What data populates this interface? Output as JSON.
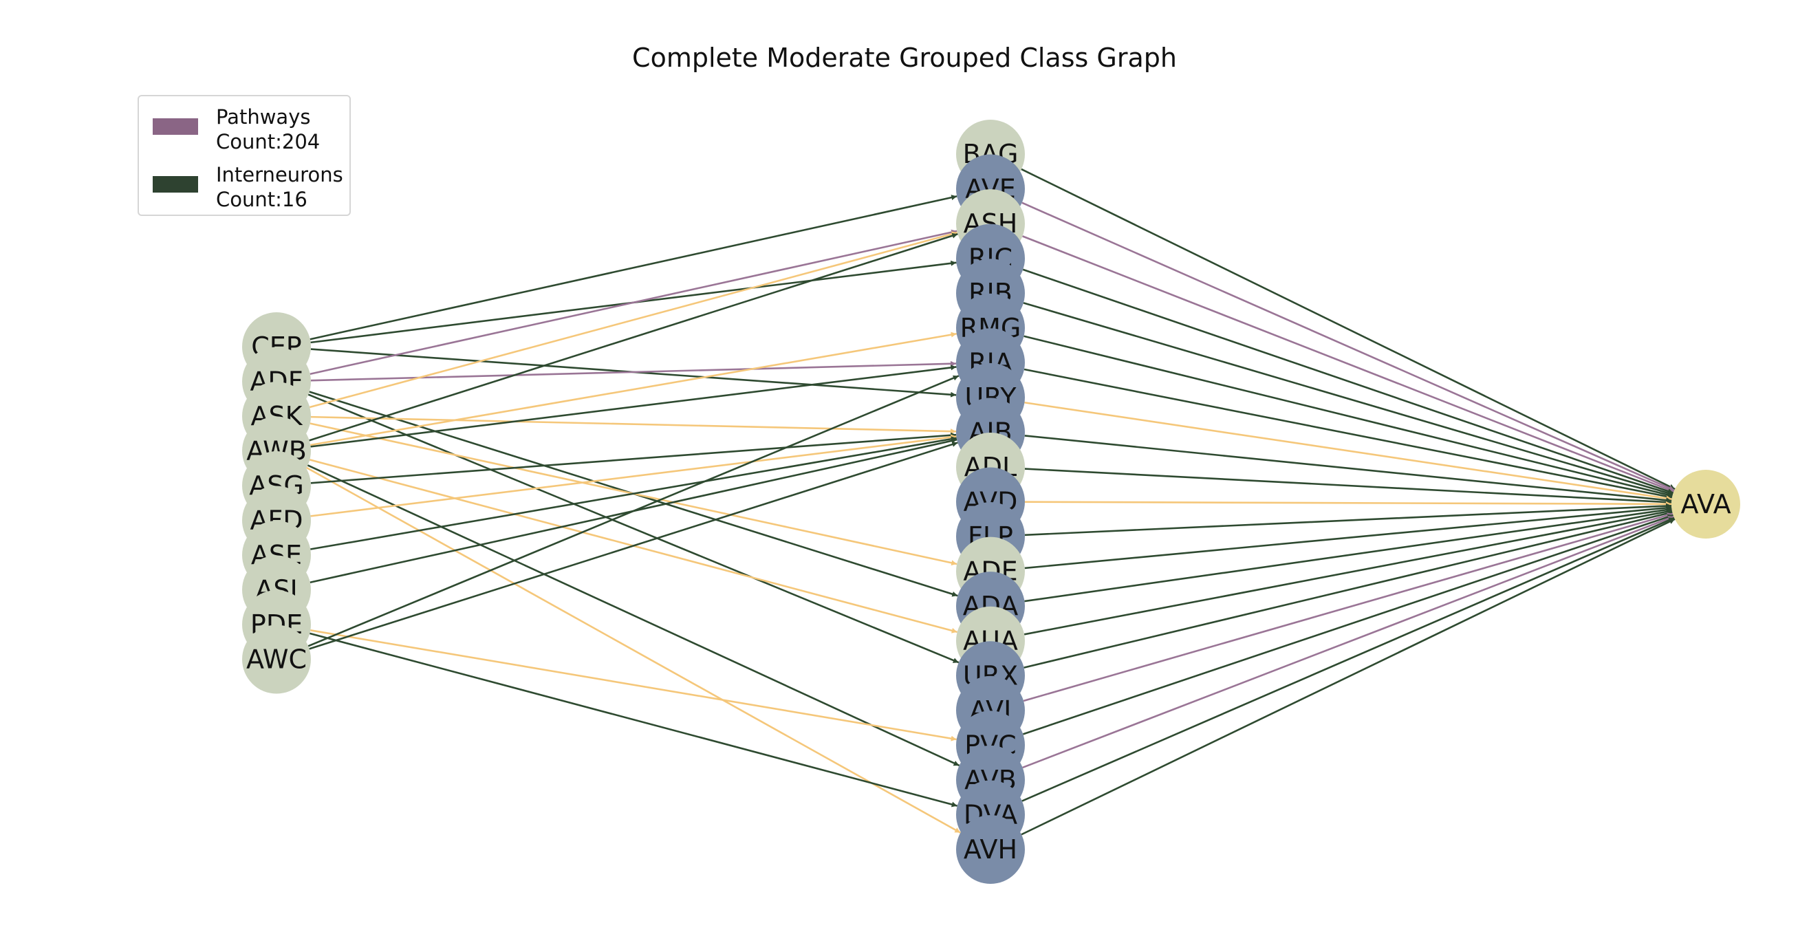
{
  "title": "Complete Moderate Grouped Class Graph",
  "legend": [
    {
      "label": "Pathways",
      "count": "Count:204",
      "color": "#8a6585"
    },
    {
      "label": "Interneurons",
      "count": "Count:16",
      "color": "#2e4230"
    }
  ],
  "colors": {
    "sensory_node": "#cbd3be",
    "interneuron_node": "#7a8ca8",
    "target_node": "#e6dc9c",
    "edge_dark": "#2e4a30",
    "edge_purple": "#9a7596",
    "edge_orange": "#f5c77a"
  },
  "nodes": {
    "left": [
      "CEP",
      "ADF",
      "ASK",
      "AWB",
      "ASG",
      "AFD",
      "ASE",
      "ASI",
      "PDE",
      "AWC"
    ],
    "middle": [
      {
        "id": "BAG",
        "kind": "sensory"
      },
      {
        "id": "AVE",
        "kind": "inter"
      },
      {
        "id": "ASH",
        "kind": "sensory"
      },
      {
        "id": "RIC",
        "kind": "inter"
      },
      {
        "id": "RIB",
        "kind": "inter"
      },
      {
        "id": "RMG",
        "kind": "inter"
      },
      {
        "id": "RIA",
        "kind": "inter"
      },
      {
        "id": "URY",
        "kind": "inter"
      },
      {
        "id": "AIB",
        "kind": "inter"
      },
      {
        "id": "ADL",
        "kind": "sensory"
      },
      {
        "id": "AVD",
        "kind": "inter"
      },
      {
        "id": "FLP",
        "kind": "inter"
      },
      {
        "id": "ADE",
        "kind": "sensory"
      },
      {
        "id": "ADA",
        "kind": "inter"
      },
      {
        "id": "AUA",
        "kind": "sensory"
      },
      {
        "id": "URX",
        "kind": "inter"
      },
      {
        "id": "AVJ",
        "kind": "inter"
      },
      {
        "id": "PVC",
        "kind": "inter"
      },
      {
        "id": "AVB",
        "kind": "inter"
      },
      {
        "id": "DVA",
        "kind": "inter"
      },
      {
        "id": "AVH",
        "kind": "inter"
      }
    ],
    "target": "AVA"
  },
  "edges_left": [
    {
      "from": "CEP",
      "to": "AVE",
      "color": "edge_dark"
    },
    {
      "from": "CEP",
      "to": "RIC",
      "color": "edge_dark"
    },
    {
      "from": "CEP",
      "to": "URY",
      "color": "edge_dark"
    },
    {
      "from": "ADF",
      "to": "ASH",
      "color": "edge_purple"
    },
    {
      "from": "ADF",
      "to": "RIA",
      "color": "edge_purple"
    },
    {
      "from": "ADF",
      "to": "ADA",
      "color": "edge_dark"
    },
    {
      "from": "ADF",
      "to": "URX",
      "color": "edge_dark"
    },
    {
      "from": "ASK",
      "to": "ASH",
      "color": "edge_orange"
    },
    {
      "from": "ASK",
      "to": "AIB",
      "color": "edge_orange"
    },
    {
      "from": "ASK",
      "to": "ADE",
      "color": "edge_orange"
    },
    {
      "from": "AWB",
      "to": "ASH",
      "color": "edge_dark"
    },
    {
      "from": "AWB",
      "to": "RMG",
      "color": "edge_orange"
    },
    {
      "from": "AWB",
      "to": "RIA",
      "color": "edge_dark"
    },
    {
      "from": "AWB",
      "to": "AUA",
      "color": "edge_orange"
    },
    {
      "from": "AWB",
      "to": "AVB",
      "color": "edge_dark"
    },
    {
      "from": "AWB",
      "to": "AVH",
      "color": "edge_orange"
    },
    {
      "from": "ASG",
      "to": "AIB",
      "color": "edge_dark"
    },
    {
      "from": "AFD",
      "to": "AIB",
      "color": "edge_orange"
    },
    {
      "from": "ASE",
      "to": "AIB",
      "color": "edge_dark"
    },
    {
      "from": "ASI",
      "to": "AIB",
      "color": "edge_dark"
    },
    {
      "from": "PDE",
      "to": "PVC",
      "color": "edge_orange"
    },
    {
      "from": "PDE",
      "to": "DVA",
      "color": "edge_dark"
    },
    {
      "from": "AWC",
      "to": "RIA",
      "color": "edge_dark"
    },
    {
      "from": "AWC",
      "to": "AIB",
      "color": "edge_dark"
    }
  ],
  "edges_right": [
    {
      "from": "BAG",
      "color": "edge_dark"
    },
    {
      "from": "AVE",
      "color": "edge_purple"
    },
    {
      "from": "ASH",
      "color": "edge_purple"
    },
    {
      "from": "RIC",
      "color": "edge_dark"
    },
    {
      "from": "RIB",
      "color": "edge_dark"
    },
    {
      "from": "RMG",
      "color": "edge_dark"
    },
    {
      "from": "RIA",
      "color": "edge_dark"
    },
    {
      "from": "URY",
      "color": "edge_orange"
    },
    {
      "from": "AIB",
      "color": "edge_dark"
    },
    {
      "from": "ADL",
      "color": "edge_dark"
    },
    {
      "from": "AVD",
      "color": "edge_orange"
    },
    {
      "from": "FLP",
      "color": "edge_dark"
    },
    {
      "from": "ADE",
      "color": "edge_dark"
    },
    {
      "from": "ADA",
      "color": "edge_dark"
    },
    {
      "from": "AUA",
      "color": "edge_dark"
    },
    {
      "from": "URX",
      "color": "edge_dark"
    },
    {
      "from": "AVJ",
      "color": "edge_purple"
    },
    {
      "from": "PVC",
      "color": "edge_dark"
    },
    {
      "from": "AVB",
      "color": "edge_purple"
    },
    {
      "from": "DVA",
      "color": "edge_dark"
    },
    {
      "from": "AVH",
      "color": "edge_dark"
    }
  ]
}
